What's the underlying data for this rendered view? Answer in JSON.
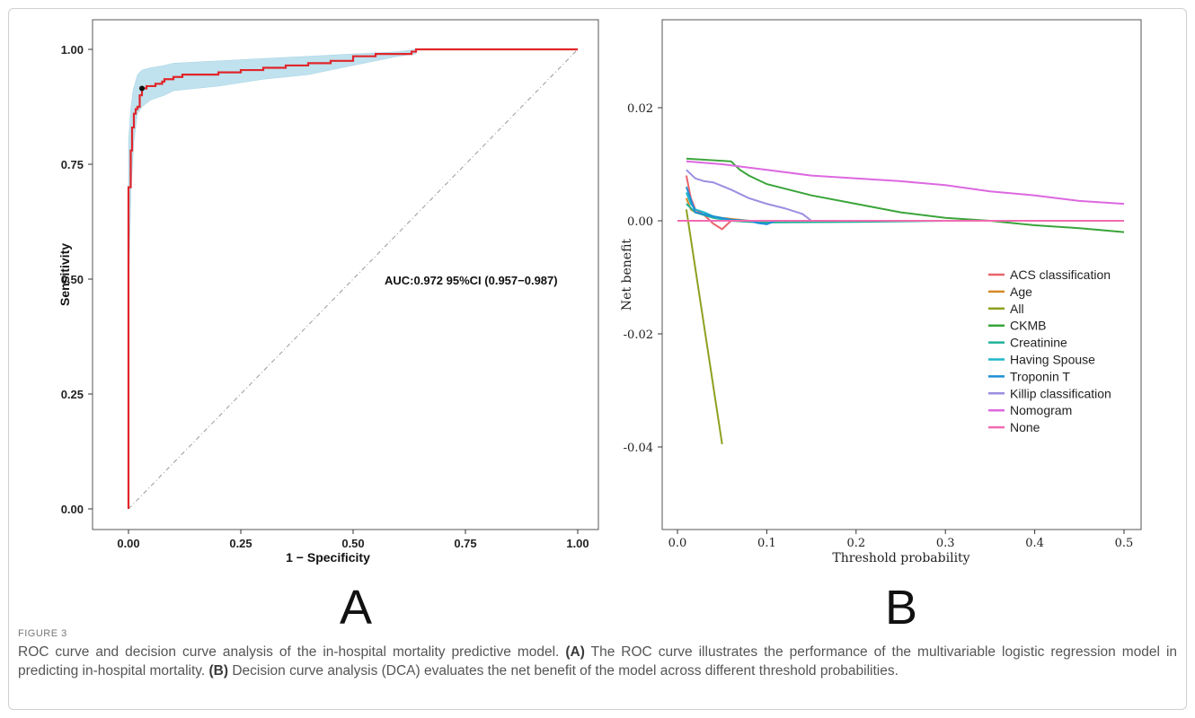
{
  "figure": {
    "label": "FIGURE 3",
    "caption_lead": "ROC curve and decision curve analysis of the in-hospital mortality predictive model.",
    "caption_a_tag": "(A)",
    "caption_a_text": "The ROC curve illustrates the performance of the multivariable logistic regression model in predicting in-hospital mortality.",
    "caption_b_tag": "(B)",
    "caption_b_text": "Decision curve analysis (DCA) evaluates the net benefit of the model across different threshold probabilities."
  },
  "colors": {
    "roc_line": "#e0262b",
    "ci_band": "#bfe2ee",
    "diagonal": "#999999",
    "acs": "#e9646a",
    "age": "#d68a25",
    "all": "#8fa020",
    "ckmb": "#3aa43a",
    "creatinine": "#21b39a",
    "spouse": "#1fb7c8",
    "troponin": "#1f8ed6",
    "killip": "#9b8ee0",
    "nomogram": "#dc68e0",
    "none": "#f06bb0"
  },
  "chart_data": [
    {
      "type": "line",
      "panel_letter": "A",
      "xlabel": "1 − Specificity",
      "ylabel": "Sensitivity",
      "xlim": [
        0,
        1
      ],
      "ylim": [
        0,
        1
      ],
      "xticks": [
        "0.00",
        "0.25",
        "0.50",
        "0.75",
        "1.00"
      ],
      "yticks": [
        "0.00",
        "0.25",
        "0.50",
        "0.75",
        "1.00"
      ],
      "grid": false,
      "annotation": "AUC:0.972 95%CI (0.957−0.987)",
      "roc": [
        [
          0,
          0
        ],
        [
          0,
          0.7
        ],
        [
          0.005,
          0.78
        ],
        [
          0.008,
          0.83
        ],
        [
          0.012,
          0.86
        ],
        [
          0.016,
          0.87
        ],
        [
          0.02,
          0.875
        ],
        [
          0.025,
          0.9
        ],
        [
          0.03,
          0.915
        ],
        [
          0.035,
          0.915
        ],
        [
          0.04,
          0.92
        ],
        [
          0.06,
          0.925
        ],
        [
          0.075,
          0.93
        ],
        [
          0.08,
          0.935
        ],
        [
          0.1,
          0.94
        ],
        [
          0.12,
          0.945
        ],
        [
          0.15,
          0.945
        ],
        [
          0.2,
          0.95
        ],
        [
          0.25,
          0.955
        ],
        [
          0.3,
          0.96
        ],
        [
          0.35,
          0.965
        ],
        [
          0.4,
          0.97
        ],
        [
          0.45,
          0.975
        ],
        [
          0.5,
          0.985
        ],
        [
          0.55,
          0.99
        ],
        [
          0.6,
          0.99
        ],
        [
          0.63,
          0.995
        ],
        [
          0.64,
          1.0
        ],
        [
          1.0,
          1.0
        ]
      ],
      "ci_upper": [
        [
          0,
          0.8
        ],
        [
          0.005,
          0.87
        ],
        [
          0.01,
          0.91
        ],
        [
          0.02,
          0.945
        ],
        [
          0.03,
          0.955
        ],
        [
          0.05,
          0.96
        ],
        [
          0.08,
          0.965
        ],
        [
          0.1,
          0.97
        ],
        [
          0.2,
          0.975
        ],
        [
          0.3,
          0.98
        ],
        [
          0.4,
          0.985
        ],
        [
          0.5,
          0.99
        ],
        [
          0.6,
          0.995
        ],
        [
          0.64,
          1.0
        ]
      ],
      "ci_lower": [
        [
          0.64,
          0.99
        ],
        [
          0.6,
          0.985
        ],
        [
          0.55,
          0.975
        ],
        [
          0.5,
          0.965
        ],
        [
          0.45,
          0.955
        ],
        [
          0.4,
          0.945
        ],
        [
          0.3,
          0.935
        ],
        [
          0.2,
          0.92
        ],
        [
          0.15,
          0.915
        ],
        [
          0.1,
          0.91
        ],
        [
          0.08,
          0.9
        ],
        [
          0.05,
          0.89
        ],
        [
          0.03,
          0.875
        ],
        [
          0.02,
          0.86
        ],
        [
          0.012,
          0.8
        ],
        [
          0.006,
          0.7
        ],
        [
          0.002,
          0.55
        ],
        [
          0,
          0.4
        ]
      ],
      "optimal_point": [
        0.03,
        0.915
      ],
      "diagonal": [
        [
          0,
          0
        ],
        [
          1,
          1
        ]
      ],
      "below_label": "A"
    },
    {
      "type": "line",
      "panel_letter": "B",
      "xlabel": "Threshold probability",
      "ylabel": "Net benefit",
      "xlim": [
        0,
        0.5
      ],
      "ylim": [
        -0.055,
        0.035
      ],
      "xticks": [
        "0.0",
        "0.1",
        "0.2",
        "0.3",
        "0.4",
        "0.5"
      ],
      "yticks": [
        "-0.04",
        "-0.02",
        "0.00",
        "0.02"
      ],
      "grid": false,
      "legend_position": "bottom-right",
      "series": [
        {
          "name": "ACS classification",
          "color_key": "acs",
          "x": [
            0.01,
            0.015,
            0.02,
            0.03,
            0.04,
            0.05,
            0.06,
            0.08,
            0.1,
            0.5
          ],
          "y": [
            0.008,
            0.004,
            0.002,
            0.001,
            -0.0005,
            -0.0015,
            0,
            0,
            0,
            0
          ]
        },
        {
          "name": "Age",
          "color_key": "age",
          "x": [
            0.01,
            0.015,
            0.02,
            0.03,
            0.05,
            0.08,
            0.1,
            0.5
          ],
          "y": [
            0.004,
            0.002,
            0.0015,
            0.001,
            0.0005,
            0,
            0,
            0
          ]
        },
        {
          "name": "All",
          "color_key": "all",
          "x": [
            0.01,
            0.05
          ],
          "y": [
            0.002,
            -0.0395
          ]
        },
        {
          "name": "CKMB",
          "color_key": "ckmb",
          "x": [
            0.01,
            0.06,
            0.07,
            0.08,
            0.1,
            0.15,
            0.2,
            0.25,
            0.3,
            0.35,
            0.4,
            0.45,
            0.5
          ],
          "y": [
            0.011,
            0.0105,
            0.009,
            0.008,
            0.0065,
            0.0045,
            0.003,
            0.0015,
            0.0005,
            0,
            -0.0008,
            -0.0013,
            -0.002
          ]
        },
        {
          "name": "Creatinine",
          "color_key": "creatinine",
          "x": [
            0.01,
            0.02,
            0.04,
            0.06,
            0.08,
            0.1,
            0.2,
            0.3,
            0.5
          ],
          "y": [
            0.003,
            0.0015,
            0.0005,
            0,
            -0.0002,
            -0.0003,
            -0.0002,
            0,
            0
          ]
        },
        {
          "name": "Having Spouse",
          "color_key": "spouse",
          "x": [
            0.01,
            0.015,
            0.02,
            0.03,
            0.04,
            0.05,
            0.06,
            0.1,
            0.5
          ],
          "y": [
            0.005,
            0.003,
            0.002,
            0.0015,
            0.0008,
            0.0003,
            0,
            0,
            0
          ]
        },
        {
          "name": "Troponin T",
          "color_key": "troponin",
          "x": [
            0.01,
            0.02,
            0.04,
            0.06,
            0.08,
            0.09,
            0.1,
            0.11,
            0.2,
            0.5
          ],
          "y": [
            0.006,
            0.0015,
            0.0008,
            0.0002,
            0,
            -0.0004,
            -0.0006,
            0,
            0,
            0
          ]
        },
        {
          "name": "Killip classification",
          "color_key": "killip",
          "x": [
            0.01,
            0.02,
            0.03,
            0.04,
            0.06,
            0.08,
            0.1,
            0.12,
            0.14,
            0.15,
            0.5
          ],
          "y": [
            0.009,
            0.0075,
            0.007,
            0.0068,
            0.0055,
            0.004,
            0.003,
            0.0022,
            0.0012,
            0,
            0
          ]
        },
        {
          "name": "Nomogram",
          "color_key": "nomogram",
          "x": [
            0.01,
            0.05,
            0.1,
            0.15,
            0.2,
            0.25,
            0.3,
            0.35,
            0.4,
            0.45,
            0.5
          ],
          "y": [
            0.0105,
            0.01,
            0.009,
            0.008,
            0.0075,
            0.007,
            0.0063,
            0.0052,
            0.0045,
            0.0035,
            0.003
          ]
        },
        {
          "name": "None",
          "color_key": "none",
          "x": [
            0,
            0.5
          ],
          "y": [
            0,
            0
          ]
        }
      ],
      "below_label": "B"
    }
  ]
}
